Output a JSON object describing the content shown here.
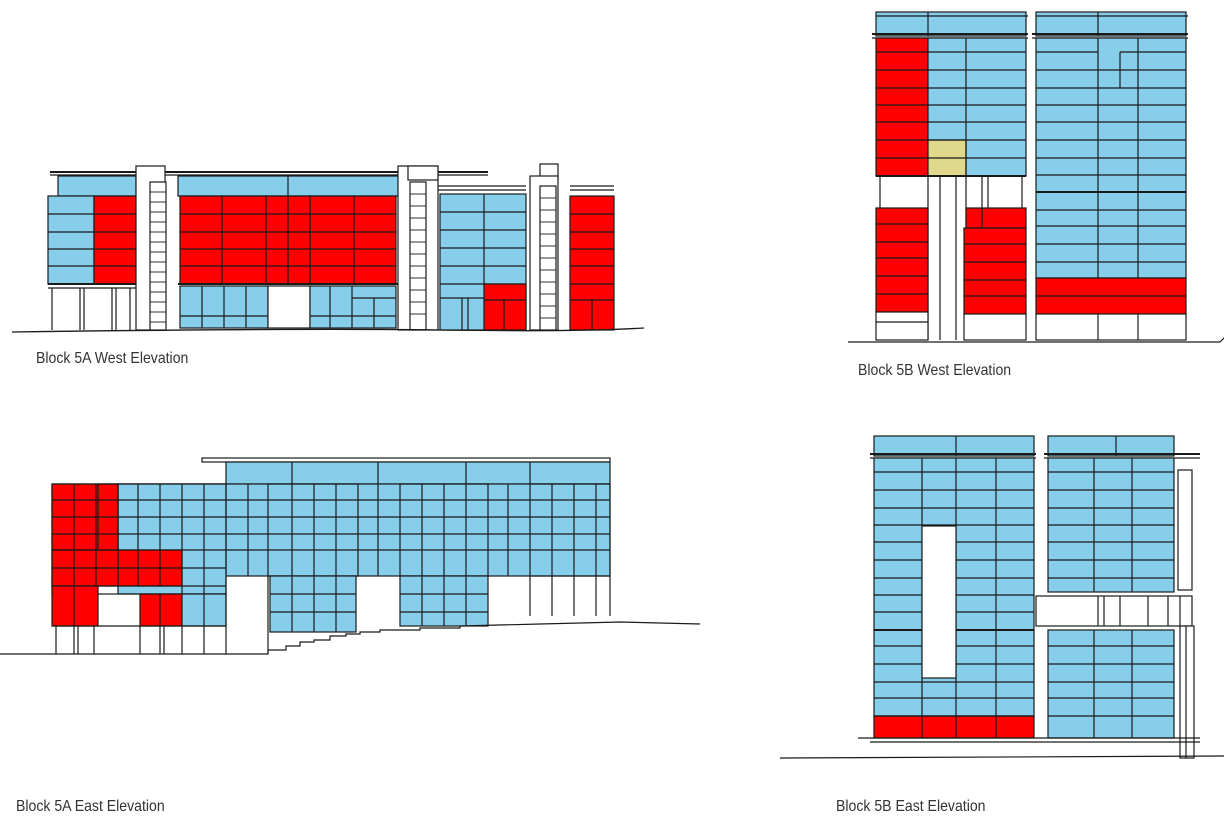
{
  "colors": {
    "glazing": "#87CEEB",
    "highlight": "#FF0000",
    "accent": "#E0D98C",
    "line": "#1a1a1a",
    "void": "#ffffff"
  },
  "elevations": [
    {
      "id": "5a-west",
      "caption": "Block 5A West Elevation"
    },
    {
      "id": "5b-west",
      "caption": "Block 5B West Elevation"
    },
    {
      "id": "5a-east",
      "caption": "Block 5A East Elevation"
    },
    {
      "id": "5b-east",
      "caption": "Block 5B East Elevation"
    }
  ]
}
